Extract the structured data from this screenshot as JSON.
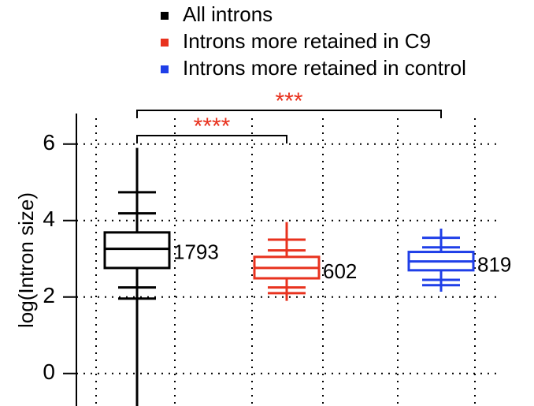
{
  "chart_data": {
    "type": "box",
    "ylabel": "log(Intron size)",
    "ylim": [
      -0.85,
      6.8
    ],
    "yticks": [
      0,
      2,
      4,
      6
    ],
    "grid": true,
    "legend_position": "top",
    "series": [
      {
        "name": "All introns",
        "color": "#000000",
        "whisker_low": -0.85,
        "low_marks": [
          1.96,
          2.25
        ],
        "q1": 2.76,
        "median": 3.26,
        "q3": 3.69,
        "high_marks": [
          4.19,
          4.74
        ],
        "whisker_high": 5.9,
        "n": 1793
      },
      {
        "name": "Introns more retained in C9",
        "color": "#e8321e",
        "whisker_low": 1.9,
        "low_marks": [
          2.1,
          2.25
        ],
        "q1": 2.49,
        "median": 2.76,
        "q3": 3.05,
        "high_marks": [
          3.22,
          3.5
        ],
        "whisker_high": 3.96,
        "n": 602
      },
      {
        "name": "Introns more retained in control",
        "color": "#1f3fe8",
        "whisker_low": 2.14,
        "low_marks": [
          2.31,
          2.45
        ],
        "q1": 2.7,
        "median": 2.93,
        "q3": 3.18,
        "high_marks": [
          3.3,
          3.55
        ],
        "whisker_high": 3.79,
        "n": 819
      }
    ],
    "annotations": [
      {
        "label": "****",
        "groups": [
          0,
          1
        ],
        "color": "#e8321e"
      },
      {
        "label": "***",
        "groups": [
          0,
          2
        ],
        "color": "#e8321e"
      }
    ]
  }
}
